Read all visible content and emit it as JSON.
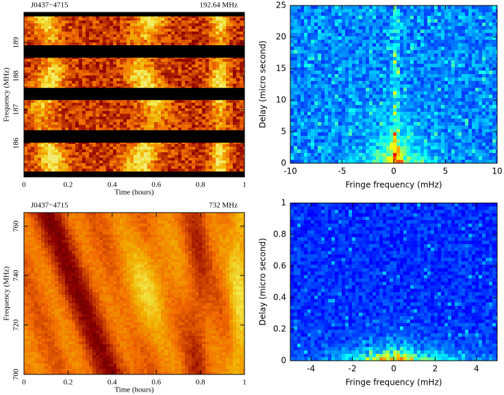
{
  "chart_data": [
    {
      "type": "heatmap",
      "colormap": "hot",
      "font": "serif",
      "title_left": "J0437−4715",
      "title_right": "192.64 MHz",
      "xlabel": "Time (hours)",
      "ylabel": "Frequency (MHz)",
      "xlim": [
        0,
        1
      ],
      "xticks": [
        0,
        0.2,
        0.4,
        0.6,
        0.8,
        1
      ],
      "ylim": [
        185.0,
        189.9
      ],
      "yticks": [
        186,
        187,
        188,
        189
      ],
      "masked_bands": [
        [
          185.0,
          185.16
        ],
        [
          186.02,
          186.39
        ],
        [
          187.29,
          187.65
        ],
        [
          188.55,
          188.92
        ],
        [
          189.78,
          189.9
        ]
      ]
    },
    {
      "type": "heatmap",
      "colormap": "jet",
      "font": "sans",
      "xlabel": "Fringe frequency (mHz)",
      "ylabel": "Delay (micro second)",
      "xlim": [
        -10,
        10
      ],
      "xticks": [
        -10,
        -5,
        0,
        5,
        10
      ],
      "ylim": [
        0,
        25
      ],
      "yticks": [
        0,
        5,
        10,
        15,
        20,
        25
      ]
    },
    {
      "type": "heatmap",
      "colormap": "hot",
      "font": "serif",
      "title_left": "J0437−4715",
      "title_right": "732 MHz",
      "xlabel": "Time (hours)",
      "ylabel": "Frequency (MHz)",
      "xlim": [
        0,
        1
      ],
      "xticks": [
        0,
        0.2,
        0.4,
        0.6,
        0.8,
        1
      ],
      "ylim": [
        700,
        765.5
      ],
      "yticks": [
        700,
        720,
        740,
        760
      ]
    },
    {
      "type": "heatmap",
      "colormap": "jet",
      "font": "sans",
      "xlabel": "Fringe frequency (mHz)",
      "ylabel": "Delay (micro second)",
      "xlim": [
        -5,
        5
      ],
      "xticks": [
        -4,
        -2,
        0,
        2,
        4
      ],
      "ylim": [
        0,
        1
      ],
      "yticks": [
        0,
        0.2,
        0.4,
        0.6,
        0.8,
        1
      ]
    }
  ]
}
